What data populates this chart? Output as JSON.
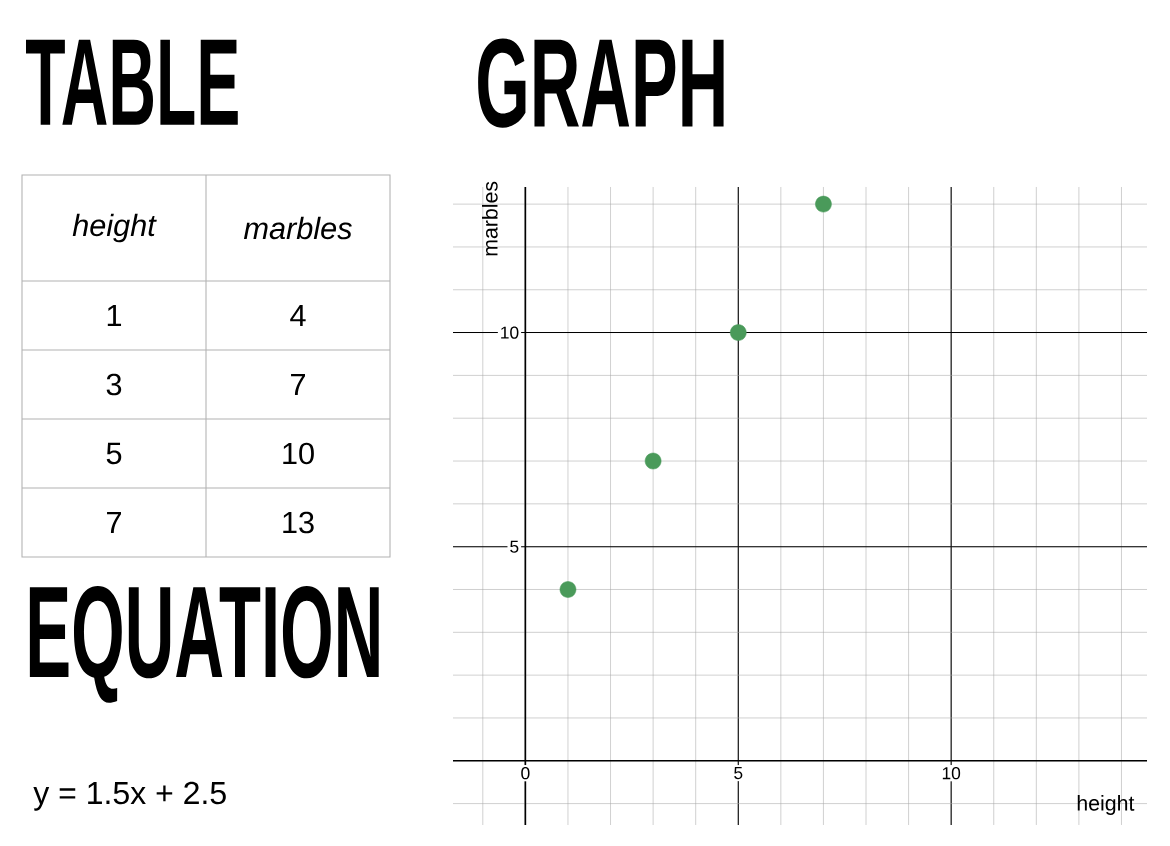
{
  "chart_data": {
    "type": "scatter",
    "title": "GRAPH",
    "xlabel": "height",
    "ylabel": "marbles",
    "x": [
      1,
      3,
      5,
      7
    ],
    "values": [
      4,
      7,
      10,
      13
    ],
    "color": "#4a9a5a",
    "marker": "circle",
    "xlim": [
      -1.7,
      14.6
    ],
    "ylim": [
      -1.5,
      13.4
    ],
    "xticks": [
      0,
      5,
      10
    ],
    "yticks": [
      5,
      10
    ],
    "grid": true,
    "annotations": [
      "TABLE",
      "EQUATION",
      "y = 1.5x + 2.5",
      "height",
      "marbles",
      "1",
      "4",
      "3",
      "7",
      "5",
      "10",
      "7",
      "13"
    ]
  }
}
